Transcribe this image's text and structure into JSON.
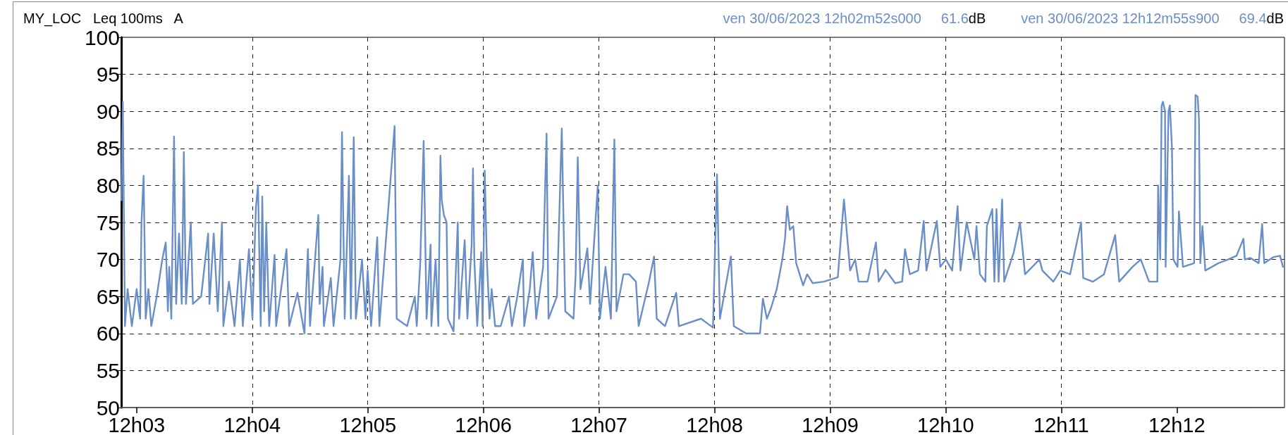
{
  "chart_data": {
    "type": "line",
    "title": "MY_LOC   Leq 100ms   A",
    "annotations": [
      "ven 30/06/2023 12h02m52s000",
      "61.6dB",
      "ven 30/06/2023 12h12m55s900",
      "69.4dB"
    ],
    "xlim": [
      "2023-06-30T12:02:52",
      "2023-06-30T12:12:55.9"
    ],
    "xticks": [
      {
        "value": "2023-06-30T12:03",
        "label": "12h03"
      },
      {
        "value": "2023-06-30T12:04",
        "label": "12h04"
      },
      {
        "value": "2023-06-30T12:05",
        "label": "12h05"
      },
      {
        "value": "2023-06-30T12:06",
        "label": "12h06"
      },
      {
        "value": "2023-06-30T12:07",
        "label": "12h07"
      },
      {
        "value": "2023-06-30T12:08",
        "label": "12h08"
      },
      {
        "value": "2023-06-30T12:09",
        "label": "12h09"
      },
      {
        "value": "2023-06-30T12:10",
        "label": "12h10"
      },
      {
        "value": "2023-06-30T12:11",
        "label": "12h11"
      },
      {
        "value": "2023-06-30T12:12",
        "label": "12h12"
      }
    ],
    "ylim": [
      50,
      100
    ],
    "yticks": [
      50,
      55,
      60,
      65,
      70,
      75,
      80,
      85,
      90,
      95,
      100
    ],
    "grid": true,
    "marker": "none",
    "line_style": "solid",
    "series": [
      {
        "color": "#6a8ec8",
        "x": [
          "2023-06-30T12:02:52.1",
          "2023-06-30T12:02:52.8",
          "2023-06-30T12:02:53.9",
          "2023-06-30T12:02:55.3",
          "2023-06-30T12:02:57.5",
          "2023-06-30T12:03:00.0",
          "2023-06-30T12:03:01.8",
          "2023-06-30T12:03:02.5",
          "2023-06-30T12:03:03.6",
          "2023-06-30T12:03:04.7",
          "2023-06-30T12:03:06.1",
          "2023-06-30T12:03:07.6",
          "2023-06-30T12:03:10.4",
          "2023-06-30T12:03:13.3",
          "2023-06-30T12:03:15.1",
          "2023-06-30T12:03:16.2",
          "2023-06-30T12:03:16.9",
          "2023-06-30T12:03:18.0",
          "2023-06-30T12:03:19.4",
          "2023-06-30T12:03:20.5",
          "2023-06-30T12:03:22.0",
          "2023-06-30T12:03:23.4",
          "2023-06-30T12:03:24.5",
          "2023-06-30T12:03:25.6",
          "2023-06-30T12:03:28.1",
          "2023-06-30T12:03:29.2",
          "2023-06-30T12:03:33.5",
          "2023-06-30T12:03:37.1",
          "2023-06-30T12:03:37.8",
          "2023-06-30T12:03:40.0",
          "2023-06-30T12:03:42.1",
          "2023-06-30T12:03:44.3",
          "2023-06-30T12:03:45.0",
          "2023-06-30T12:03:47.9",
          "2023-06-30T12:03:50.8",
          "2023-06-30T12:03:53.6",
          "2023-06-30T12:03:55.1",
          "2023-06-30T12:03:58.3",
          "2023-06-30T12:04:00.1",
          "2023-06-30T12:04:01.9",
          "2023-06-30T12:04:03.0",
          "2023-06-30T12:04:04.4",
          "2023-06-30T12:04:05.2",
          "2023-06-30T12:04:06.2",
          "2023-06-30T12:04:07.3",
          "2023-06-30T12:04:08.8",
          "2023-06-30T12:04:11.6",
          "2023-06-30T12:04:12.4",
          "2023-06-30T12:04:17.8",
          "2023-06-30T12:04:19.2",
          "2023-06-30T12:04:23.5",
          "2023-06-30T12:04:27.1",
          "2023-06-30T12:04:28.9",
          "2023-06-30T12:04:30.0",
          "2023-06-30T12:04:34.3",
          "2023-06-30T12:04:35.0",
          "2023-06-30T12:04:36.5",
          "2023-06-30T12:04:37.2",
          "2023-06-30T12:04:40.8",
          "2023-06-30T12:04:42.2",
          "2023-06-30T12:04:45.8",
          "2023-06-30T12:04:46.6",
          "2023-06-30T12:04:48.0",
          "2023-06-30T12:04:50.2",
          "2023-06-30T12:04:51.2",
          "2023-06-30T12:04:52.7",
          "2023-06-30T12:04:53.8",
          "2023-06-30T12:04:57.0",
          "2023-06-30T12:04:58.8",
          "2023-06-30T12:04:59.9",
          "2023-06-30T12:05:01.7",
          "2023-06-30T12:05:04.9",
          "2023-06-30T12:05:06.0",
          "2023-06-30T12:05:13.9",
          "2023-06-30T12:05:15.0",
          "2023-06-30T12:05:20.4",
          "2023-06-30T12:05:24.4",
          "2023-06-30T12:05:25.4",
          "2023-06-30T12:05:27.2",
          "2023-06-30T12:05:29.0",
          "2023-06-30T12:05:30.5",
          "2023-06-30T12:05:32.6",
          "2023-06-30T12:05:33.0",
          "2023-06-30T12:05:35.2",
          "2023-06-30T12:05:36.6",
          "2023-06-30T12:05:37.7",
          "2023-06-30T12:05:38.4",
          "2023-06-30T12:05:39.5",
          "2023-06-30T12:05:40.9",
          "2023-06-30T12:05:41.6",
          "2023-06-30T12:05:44.5",
          "2023-06-30T12:05:46.7",
          "2023-06-30T12:05:47.4",
          "2023-06-30T12:05:50.3",
          "2023-06-30T12:05:51.7",
          "2023-06-30T12:05:53.9",
          "2023-06-30T12:05:54.6",
          "2023-06-30T12:05:55.3",
          "2023-06-30T12:05:56.8",
          "2023-06-30T12:05:58.9",
          "2023-06-30T12:05:59.6",
          "2023-06-30T12:06:00.7",
          "2023-06-30T12:06:01.8",
          "2023-06-30T12:06:03.2",
          "2023-06-30T12:06:04.3",
          "2023-06-30T12:06:06.1",
          "2023-06-30T12:06:09.0",
          "2023-06-30T12:06:13.3",
          "2023-06-30T12:06:14.8",
          "2023-06-30T12:06:17.6",
          "2023-06-30T12:06:20.5",
          "2023-06-30T12:06:21.2",
          "2023-06-30T12:06:24.1",
          "2023-06-30T12:06:25.6",
          "2023-06-30T12:06:27.4",
          "2023-06-30T12:06:31.0",
          "2023-06-30T12:06:32.8",
          "2023-06-30T12:06:33.8",
          "2023-06-30T12:06:38.2",
          "2023-06-30T12:06:40.7",
          "2023-06-30T12:06:42.5",
          "2023-06-30T12:06:46.8",
          "2023-06-30T12:06:47.9",
          "2023-06-30T12:06:49.0",
          "2023-06-30T12:06:50.4",
          "2023-06-30T12:06:54.0",
          "2023-06-30T12:06:55.4",
          "2023-06-30T12:06:59.4",
          "2023-06-30T12:07:00.5",
          "2023-06-30T12:07:03.4",
          "2023-06-30T12:07:06.2",
          "2023-06-30T12:07:08.0",
          "2023-06-30T12:07:09.1",
          "2023-06-30T12:07:12.7",
          "2023-06-30T12:07:15.6",
          "2023-06-30T12:07:19.2",
          "2023-06-30T12:07:20.6",
          "2023-06-30T12:07:26.0",
          "2023-06-30T12:07:28.6",
          "2023-06-30T12:07:30.0",
          "2023-06-30T12:07:34.3",
          "2023-06-30T12:07:40.1",
          "2023-06-30T12:07:41.5",
          "2023-06-30T12:07:53.0",
          "2023-06-30T12:07:59.2",
          "2023-06-30T12:08:01.3",
          "2023-06-30T12:08:02.8",
          "2023-06-30T12:08:08.5",
          "2023-06-30T12:08:10.0",
          "2023-06-30T12:08:16.4",
          "2023-06-30T12:08:23.6",
          "2023-06-30T12:08:25.1",
          "2023-06-30T12:08:27.2",
          "2023-06-30T12:08:29.4",
          "2023-06-30T12:08:32.3",
          "2023-06-30T12:08:35.2",
          "2023-06-30T12:08:36.6",
          "2023-06-30T12:08:37.7",
          "2023-06-30T12:08:39.1",
          "2023-06-30T12:08:40.9",
          "2023-06-30T12:08:42.4",
          "2023-06-30T12:08:46.0",
          "2023-06-30T12:08:48.1",
          "2023-06-30T12:08:51.0",
          "2023-06-30T12:08:56.8",
          "2023-06-30T12:09:04.0",
          "2023-06-30T12:09:07.2",
          "2023-06-30T12:09:10.4",
          "2023-06-30T12:09:13.0",
          "2023-06-30T12:09:14.8",
          "2023-06-30T12:09:19.4",
          "2023-06-30T12:09:23.8",
          "2023-06-30T12:09:25.2",
          "2023-06-30T12:09:28.8",
          "2023-06-30T12:09:33.8",
          "2023-06-30T12:09:37.4",
          "2023-06-30T12:09:38.9",
          "2023-06-30T12:09:41.4",
          "2023-06-30T12:09:45.7",
          "2023-06-30T12:09:48.6",
          "2023-06-30T12:09:50.0",
          "2023-06-30T12:09:55.4",
          "2023-06-30T12:09:57.2",
          "2023-06-30T12:10:00.1",
          "2023-06-30T12:10:03.4",
          "2023-06-30T12:10:06.2",
          "2023-06-30T12:10:07.7",
          "2023-06-30T12:10:10.9",
          "2023-06-30T12:10:14.9",
          "2023-06-30T12:10:16.0",
          "2023-06-30T12:10:17.8",
          "2023-06-30T12:10:20.6",
          "2023-06-30T12:10:21.4",
          "2023-06-30T12:10:24.2",
          "2023-06-30T12:10:25.3",
          "2023-06-30T12:10:26.4",
          "2023-06-30T12:10:27.5",
          "2023-06-30T12:10:29.3",
          "2023-06-30T12:10:30.4",
          "2023-06-30T12:10:35.4",
          "2023-06-30T12:10:38.6",
          "2023-06-30T12:10:41.2",
          "2023-06-30T12:10:48.7",
          "2023-06-30T12:10:50.2",
          "2023-06-30T12:10:55.9",
          "2023-06-30T12:10:59.5",
          "2023-06-30T12:11:04.6",
          "2023-06-30T12:11:10.3",
          "2023-06-30T12:11:11.4",
          "2023-06-30T12:11:16.4",
          "2023-06-30T12:11:22.2",
          "2023-06-30T12:11:28.0",
          "2023-06-30T12:11:30.1",
          "2023-06-30T12:11:37.0",
          "2023-06-30T12:11:41.3",
          "2023-06-30T12:11:45.6",
          "2023-06-30T12:11:49.9",
          "2023-06-30T12:11:50.3",
          "2023-06-30T12:11:51.4",
          "2023-06-30T12:11:52.1",
          "2023-06-30T12:11:52.8",
          "2023-06-30T12:11:53.9",
          "2023-06-30T12:11:54.2",
          "2023-06-30T12:11:55.7",
          "2023-06-30T12:11:56.4",
          "2023-06-30T12:11:57.5",
          "2023-06-30T12:11:58.2",
          "2023-06-30T12:12:00.4",
          "2023-06-30T12:12:01.1",
          "2023-06-30T12:12:03.2",
          "2023-06-30T12:12:09.0",
          "2023-06-30T12:12:09.7",
          "2023-06-30T12:12:10.8",
          "2023-06-30T12:12:11.5",
          "2023-06-30T12:12:12.2",
          "2023-06-30T12:12:13.3",
          "2023-06-30T12:12:14.8",
          "2023-06-30T12:12:21.6",
          "2023-06-30T12:12:26.6",
          "2023-06-30T12:12:31.0",
          "2023-06-30T12:12:34.6",
          "2023-06-30T12:12:35.3",
          "2023-06-30T12:12:38.2",
          "2023-06-30T12:12:42.5",
          "2023-06-30T12:12:44.3",
          "2023-06-30T12:12:45.4",
          "2023-06-30T12:12:50.0",
          "2023-06-30T12:12:53.6",
          "2023-06-30T12:12:55.1"
        ],
        "values": [
          78,
          91.3,
          61,
          66,
          61,
          66,
          62,
          75,
          81.3,
          62,
          66,
          61,
          65,
          70,
          72.3,
          63,
          69,
          62,
          86.6,
          64,
          73.5,
          64,
          84.5,
          64,
          75,
          64,
          65,
          73.5,
          64,
          73.5,
          63,
          75,
          61,
          67,
          61,
          70,
          61,
          71.4,
          62,
          77,
          80,
          61,
          78.5,
          63,
          75,
          61,
          70.6,
          61,
          71.4,
          61,
          65.5,
          60,
          71.4,
          61,
          76,
          64,
          69,
          61,
          67.5,
          61,
          70,
          87.2,
          62,
          81.3,
          62,
          86.5,
          62,
          70,
          62,
          68.5,
          61,
          73,
          61,
          88,
          62,
          61,
          65,
          61,
          69.4,
          86,
          62,
          72,
          61,
          70,
          61,
          84,
          78,
          76,
          75,
          62,
          60.3,
          75,
          62,
          72.6,
          62,
          72,
          82.3,
          70,
          61,
          71,
          61,
          82,
          70,
          62,
          66,
          61,
          61,
          65,
          61,
          65,
          70,
          61,
          66,
          71,
          62,
          69,
          87,
          62,
          65,
          87.7,
          63,
          62,
          68,
          83.8,
          66,
          71.5,
          64,
          80,
          62,
          69,
          62,
          86.2,
          63,
          68,
          68,
          67,
          61,
          67,
          70.4,
          62,
          61,
          65.5,
          61,
          62,
          60.8,
          81.5,
          62,
          70.4,
          61,
          60,
          60,
          64.7,
          62,
          63.5,
          66,
          70,
          72.8,
          77.2,
          74,
          74.5,
          69.5,
          66.5,
          68,
          66.8,
          67,
          67.6,
          78.1,
          68.5,
          70,
          67,
          67,
          72.3,
          67,
          68.6,
          66.8,
          67,
          71.4,
          68,
          68.5,
          75.2,
          68.5,
          75.2,
          69,
          70,
          68.5,
          77.2,
          68.5,
          75,
          70,
          74.5,
          68,
          67,
          74.5,
          76.8,
          67,
          76.8,
          67,
          78.1,
          67,
          71,
          75,
          68,
          70,
          68.5,
          67,
          68.5,
          68,
          75,
          67.5,
          67,
          68,
          73.3,
          67,
          69,
          70,
          67,
          67,
          80,
          70,
          90.7,
          91.3,
          90,
          69,
          90,
          90.8,
          85,
          70,
          69,
          76.5,
          69,
          69.5,
          92.2,
          92,
          89,
          69.5,
          74.5,
          68.5,
          69.5,
          70,
          70.5,
          72.8,
          70,
          70.2,
          69.5,
          74.8,
          69.5,
          70.3,
          70.5,
          69
        ]
      }
    ]
  }
}
